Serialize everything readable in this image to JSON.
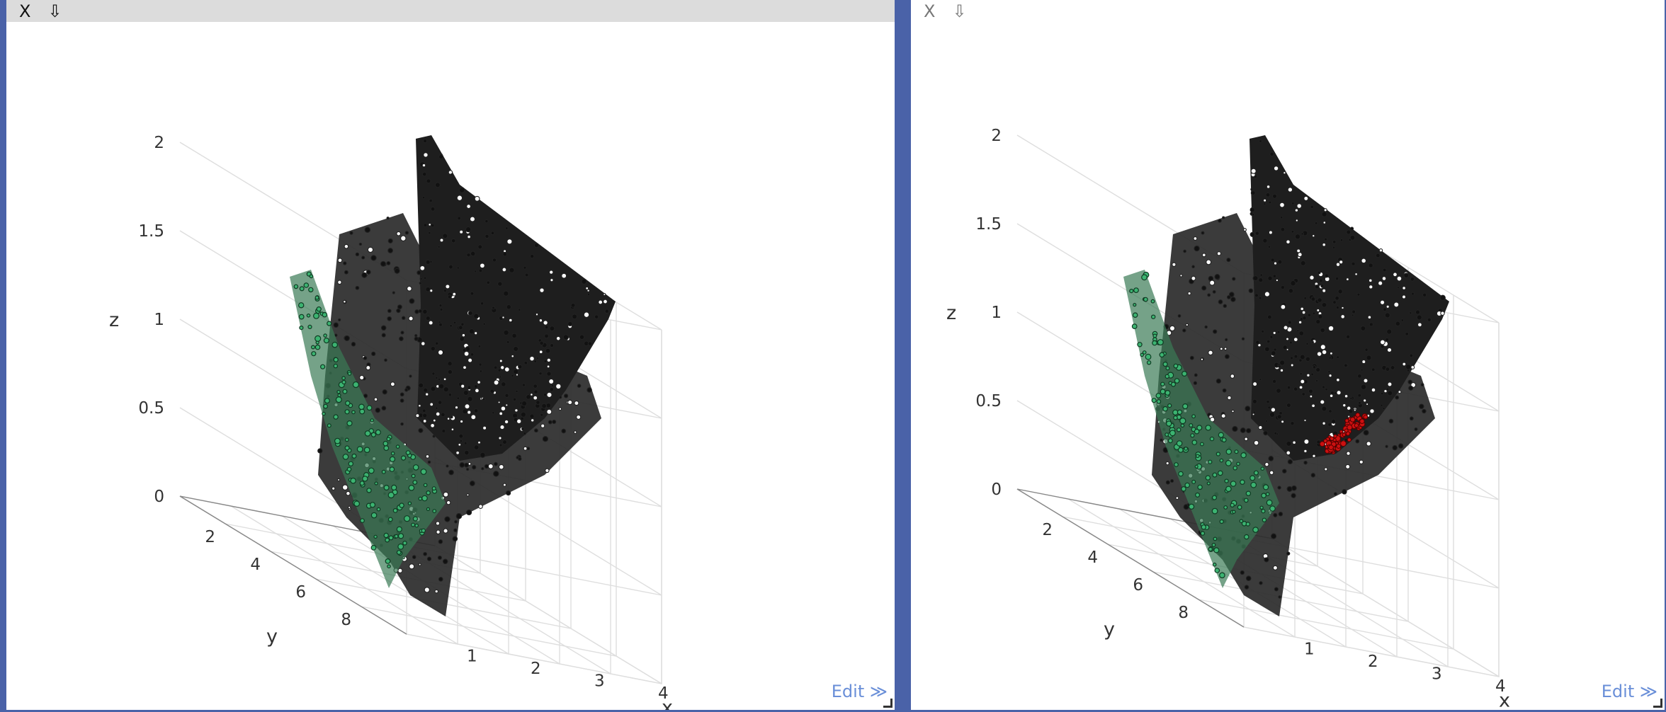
{
  "panels": [
    {
      "close_label": "X",
      "download_icon": "⇩",
      "edit_label": "Edit ≫",
      "highlight_red": false
    },
    {
      "close_label": "X",
      "download_icon": "⇩",
      "edit_label": "Edit ≫",
      "highlight_red": true
    }
  ],
  "chart_data": {
    "type": "scatter3d",
    "axes": {
      "x": {
        "label": "x",
        "ticks": [
          "1",
          "2",
          "3",
          "4"
        ]
      },
      "y": {
        "label": "y",
        "ticks": [
          "2",
          "4",
          "6",
          "8"
        ]
      },
      "z": {
        "label": "z",
        "ticks": [
          "0",
          "0.5",
          "1",
          "1.5",
          "2"
        ]
      }
    },
    "series": [
      {
        "color": "#222222"
      },
      {
        "color": "#3cb371"
      },
      {
        "color": "#cc1010"
      }
    ],
    "grid": true
  }
}
